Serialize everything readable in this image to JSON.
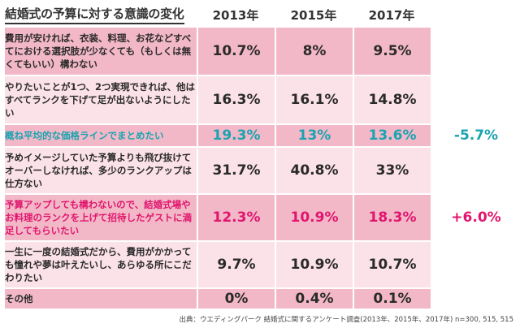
{
  "chart_data": {
    "type": "table",
    "title": "結婚式の予算に対する意識の変化",
    "years": [
      "2013年",
      "2015年",
      "2017年"
    ],
    "rows": [
      {
        "label": "費用が安ければ、衣装、料理、お花などすべてにおける選択肢が少なくても（もしくは無くてもいい）構わない",
        "values": [
          "10.7%",
          "8%",
          "9.5%"
        ],
        "change": "",
        "highlight": ""
      },
      {
        "label": "やりたいことが1つ、2つ実現できれば、他はすべてランクを下げて足が出ないようにしたい",
        "values": [
          "16.3%",
          "16.1%",
          "14.8%"
        ],
        "change": "",
        "highlight": ""
      },
      {
        "label": "概ね平均的な価格ラインでまとめたい",
        "values": [
          "19.3%",
          "13%",
          "13.6%"
        ],
        "change": "-5.7%",
        "highlight": "teal"
      },
      {
        "label": "予めイメージしていた予算よりも飛び抜けてオーバーしなければ、多少のランクアップは仕方ない",
        "values": [
          "31.7%",
          "40.8%",
          "33%"
        ],
        "change": "",
        "highlight": ""
      },
      {
        "label": "予算アップしても構わないので、結婚式場やお料理のランクを上げて招待したゲストに満足してもらいたい",
        "values": [
          "12.3%",
          "10.9%",
          "18.3%"
        ],
        "change": "+6.0%",
        "highlight": "magenta"
      },
      {
        "label": "一生に一度の結婚式だから、費用がかかっても憧れや夢は叶えたいし、あらゆる所にこだわりたい",
        "values": [
          "9.7%",
          "10.9%",
          "10.7%"
        ],
        "change": "",
        "highlight": ""
      },
      {
        "label": "その他",
        "values": [
          "0%",
          "0.4%",
          "0.1%"
        ],
        "change": "",
        "highlight": ""
      }
    ],
    "source": "出典：ウエディングパーク 結婚式に関するアンケート調査(2013年、2015年、2017年) n=300, 515, 515"
  },
  "colors": {
    "row_dark": "#f2b8c8",
    "row_light": "#fbe1e8",
    "teal": "#1aa3b0",
    "magenta": "#e0166e"
  }
}
